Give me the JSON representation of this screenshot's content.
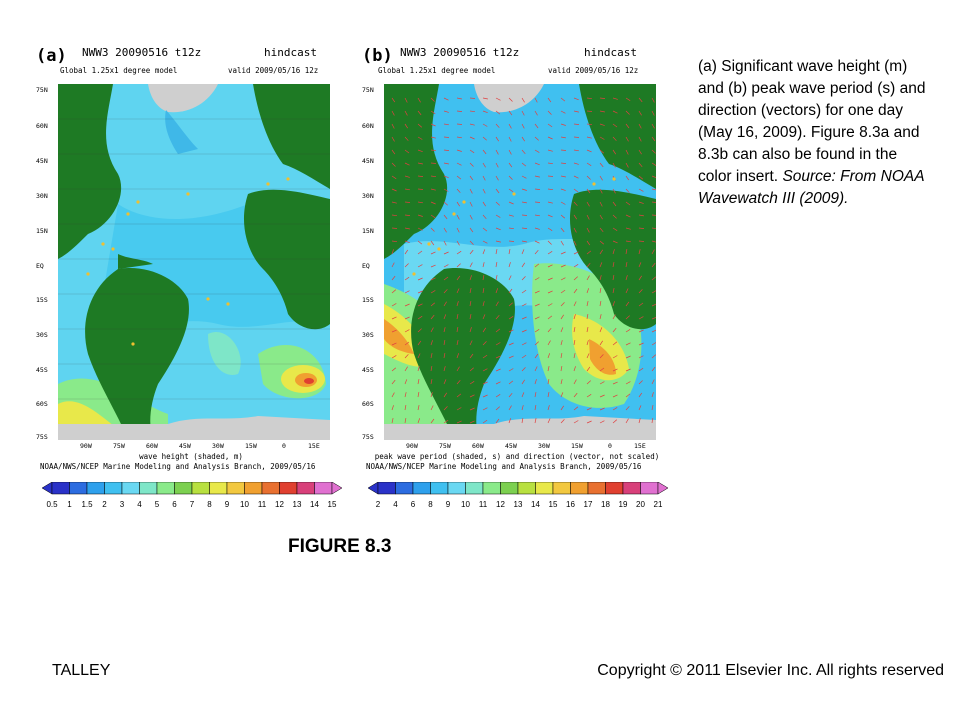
{
  "panel_a": {
    "letter": "(a)",
    "title": "NWW3 20090516 t12z",
    "run_type": "hindcast",
    "model": "Global 1.25x1 degree model",
    "valid": "valid 2009/05/16 12z",
    "x_label": "wave height (shaded, m)",
    "credit": "NOAA/NWS/NCEP Marine Modeling and Analysis Branch, 2009/05/16",
    "colorbar_labels": [
      "0.5",
      "1",
      "1.5",
      "2",
      "3",
      "4",
      "5",
      "6",
      "7",
      "8",
      "9",
      "10",
      "11",
      "12",
      "13",
      "14",
      "15"
    ]
  },
  "panel_b": {
    "letter": "(b)",
    "title": "NWW3 20090516 t12z",
    "run_type": "hindcast",
    "model": "Global 1.25x1 degree model",
    "valid": "valid 2009/05/16 12z",
    "x_label": "peak wave period (shaded, s) and direction (vector, not scaled)",
    "credit": "NOAA/NWS/NCEP Marine Modeling and Analysis Branch, 2009/05/16",
    "colorbar_labels": [
      "2",
      "4",
      "6",
      "8",
      "9",
      "10",
      "11",
      "12",
      "13",
      "14",
      "15",
      "16",
      "17",
      "18",
      "19",
      "20",
      "21"
    ]
  },
  "lat_labels": [
    "75N",
    "60N",
    "45N",
    "30N",
    "15N",
    "EQ",
    "15S",
    "30S",
    "45S",
    "60S",
    "75S"
  ],
  "lon_labels": [
    "90W",
    "75W",
    "60W",
    "45W",
    "30W",
    "15W",
    "0",
    "15E"
  ],
  "colors": {
    "land": "#1e7a24",
    "ice": "#cfcfcf",
    "ocean_low": "#3fb8e8",
    "ocean_mid": "#5fd4f0",
    "green": "#66c96a",
    "yellow": "#e6e64a",
    "orange": "#f0a030",
    "red": "#e04030"
  },
  "colorbar_a_colors": [
    "#2a32c8",
    "#2c6ce0",
    "#2ea0ec",
    "#40c0f0",
    "#6ad8f2",
    "#7ee6c8",
    "#8aea8a",
    "#7cd050",
    "#b8e040",
    "#e8e84a",
    "#f2c840",
    "#f0a030",
    "#e87030",
    "#e04030",
    "#d8407a",
    "#e070d0"
  ],
  "colorbar_b_colors": [
    "#2a32c8",
    "#2c6ce0",
    "#2ea0ec",
    "#40c0f0",
    "#6ad8f2",
    "#7ee6c8",
    "#8aea8a",
    "#7cd050",
    "#b8e040",
    "#e8e84a",
    "#f2c840",
    "#f0a030",
    "#e87030",
    "#e04030",
    "#d8407a",
    "#e070d0"
  ],
  "caption": {
    "main": "(a) Significant wave height (m) and (b) peak wave period (s) and direction (vectors) for one day (May 16, 2009). Figure 8.3a and 8.3b can also be found in the color insert.",
    "source": "Source: From NOAA Wavewatch III (2009)."
  },
  "figure_label": "FIGURE 8.3",
  "footer": {
    "left": "TALLEY",
    "right": "Copyright © 2011 Elsevier Inc. All rights reserved"
  }
}
